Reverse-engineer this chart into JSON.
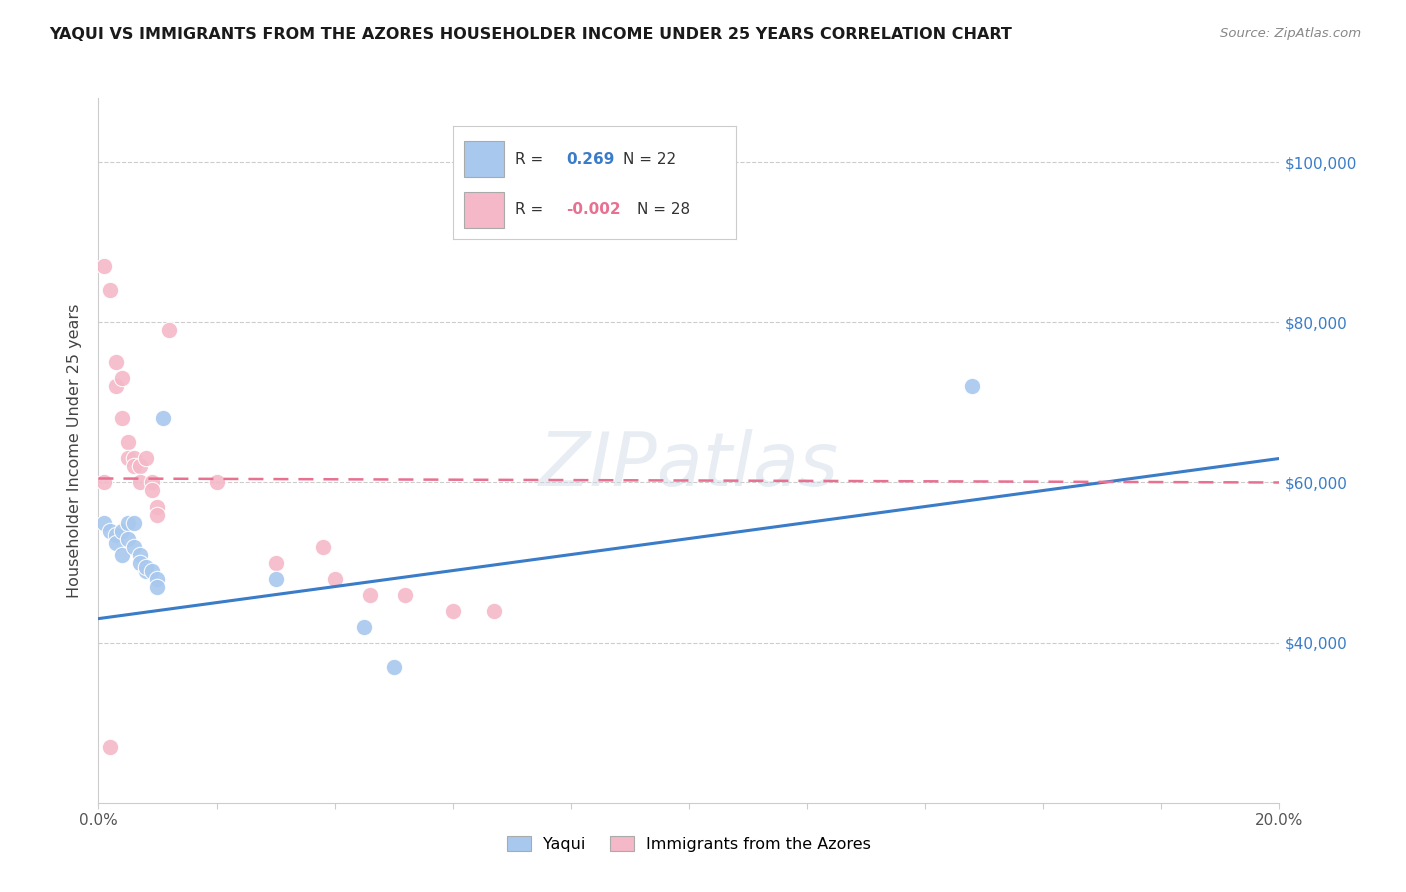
{
  "title": "YAQUI VS IMMIGRANTS FROM THE AZORES HOUSEHOLDER INCOME UNDER 25 YEARS CORRELATION CHART",
  "source": "Source: ZipAtlas.com",
  "ylabel": "Householder Income Under 25 years",
  "legend_blue_r_val": "0.269",
  "legend_blue_n": "N = 22",
  "legend_pink_r_val": "-0.002",
  "legend_pink_n": "N = 28",
  "legend_label_blue": "Yaqui",
  "legend_label_pink": "Immigrants from the Azores",
  "watermark": "ZIPatlas",
  "ytick_labels": [
    "$40,000",
    "$60,000",
    "$80,000",
    "$100,000"
  ],
  "ytick_values": [
    40000,
    60000,
    80000,
    100000
  ],
  "xlim": [
    0.0,
    0.2
  ],
  "ylim": [
    20000,
    108000
  ],
  "blue_fill": "#A8C8EE",
  "pink_fill": "#F4B8C8",
  "blue_line": "#3A7CC8",
  "pink_line": "#E87090",
  "grid_color": "#cccccc",
  "blue_scatter_x": [
    0.001,
    0.002,
    0.003,
    0.003,
    0.004,
    0.004,
    0.005,
    0.005,
    0.006,
    0.006,
    0.007,
    0.007,
    0.008,
    0.008,
    0.009,
    0.01,
    0.01,
    0.011,
    0.03,
    0.045,
    0.05,
    0.148
  ],
  "blue_scatter_y": [
    55000,
    54000,
    53500,
    52500,
    54000,
    51000,
    55000,
    53000,
    55000,
    52000,
    51000,
    50000,
    49000,
    49500,
    49000,
    48000,
    47000,
    68000,
    48000,
    42000,
    37000,
    72000
  ],
  "pink_scatter_x": [
    0.001,
    0.001,
    0.002,
    0.003,
    0.003,
    0.004,
    0.004,
    0.005,
    0.005,
    0.006,
    0.006,
    0.007,
    0.007,
    0.008,
    0.009,
    0.009,
    0.01,
    0.01,
    0.012,
    0.02,
    0.03,
    0.038,
    0.04,
    0.046,
    0.052,
    0.06,
    0.067,
    0.002
  ],
  "pink_scatter_y": [
    87000,
    60000,
    84000,
    75000,
    72000,
    73000,
    68000,
    65000,
    63000,
    63000,
    62000,
    62000,
    60000,
    63000,
    60000,
    59000,
    57000,
    56000,
    79000,
    60000,
    50000,
    52000,
    48000,
    46000,
    46000,
    44000,
    44000,
    27000
  ],
  "blue_trendline_x": [
    0.0,
    0.2
  ],
  "blue_trendline_y": [
    43000,
    63000
  ],
  "pink_trendline_x": [
    0.0,
    0.2
  ],
  "pink_trendline_y": [
    60500,
    60000
  ]
}
